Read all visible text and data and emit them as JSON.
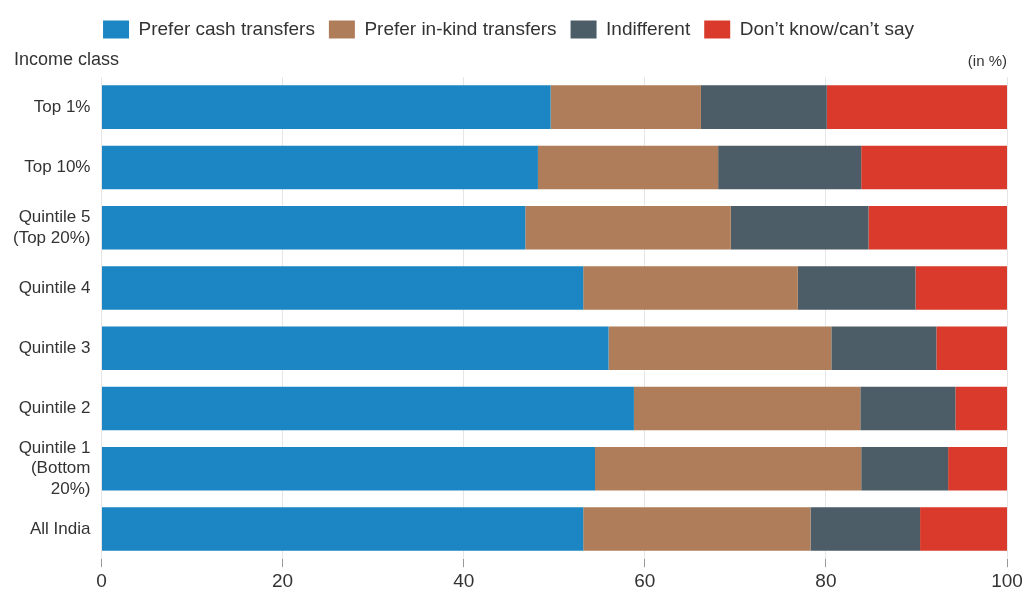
{
  "chart_data": {
    "type": "bar",
    "orientation": "horizontal",
    "stacked": true,
    "ylabel": "Income class",
    "annotations": [
      "(in %)"
    ],
    "categories": [
      "Top 1%",
      "Top 10%",
      "Quintile 5 (Top 20%)",
      "Quintile 4",
      "Quintile 3",
      "Quintile 2",
      "Quintile 1 (Bottom 20%)",
      "All India"
    ],
    "series": [
      {
        "name": "Prefer cash transfers",
        "color": "#1b86c3",
        "values": [
          49.6,
          48.2,
          46.8,
          53.2,
          56.0,
          58.8,
          54.5,
          53.2
        ]
      },
      {
        "name": "Prefer in-kind transfers",
        "color": "#b07d5a",
        "values": [
          16.6,
          19.9,
          22.7,
          23.7,
          24.6,
          25.0,
          29.4,
          25.1
        ]
      },
      {
        "name": "Indifferent",
        "color": "#4d5d68",
        "values": [
          13.9,
          15.8,
          15.2,
          13.0,
          11.6,
          10.5,
          9.6,
          12.1
        ]
      },
      {
        "name": "Don’t know/can’t say",
        "color": "#d93a2b",
        "values": [
          19.9,
          16.1,
          15.3,
          10.1,
          7.8,
          5.7,
          6.5,
          9.6
        ]
      }
    ],
    "xlim": [
      0,
      100
    ],
    "xticks": [
      0,
      20,
      40,
      60,
      80,
      100
    ],
    "grid": "x",
    "legend": "top"
  }
}
